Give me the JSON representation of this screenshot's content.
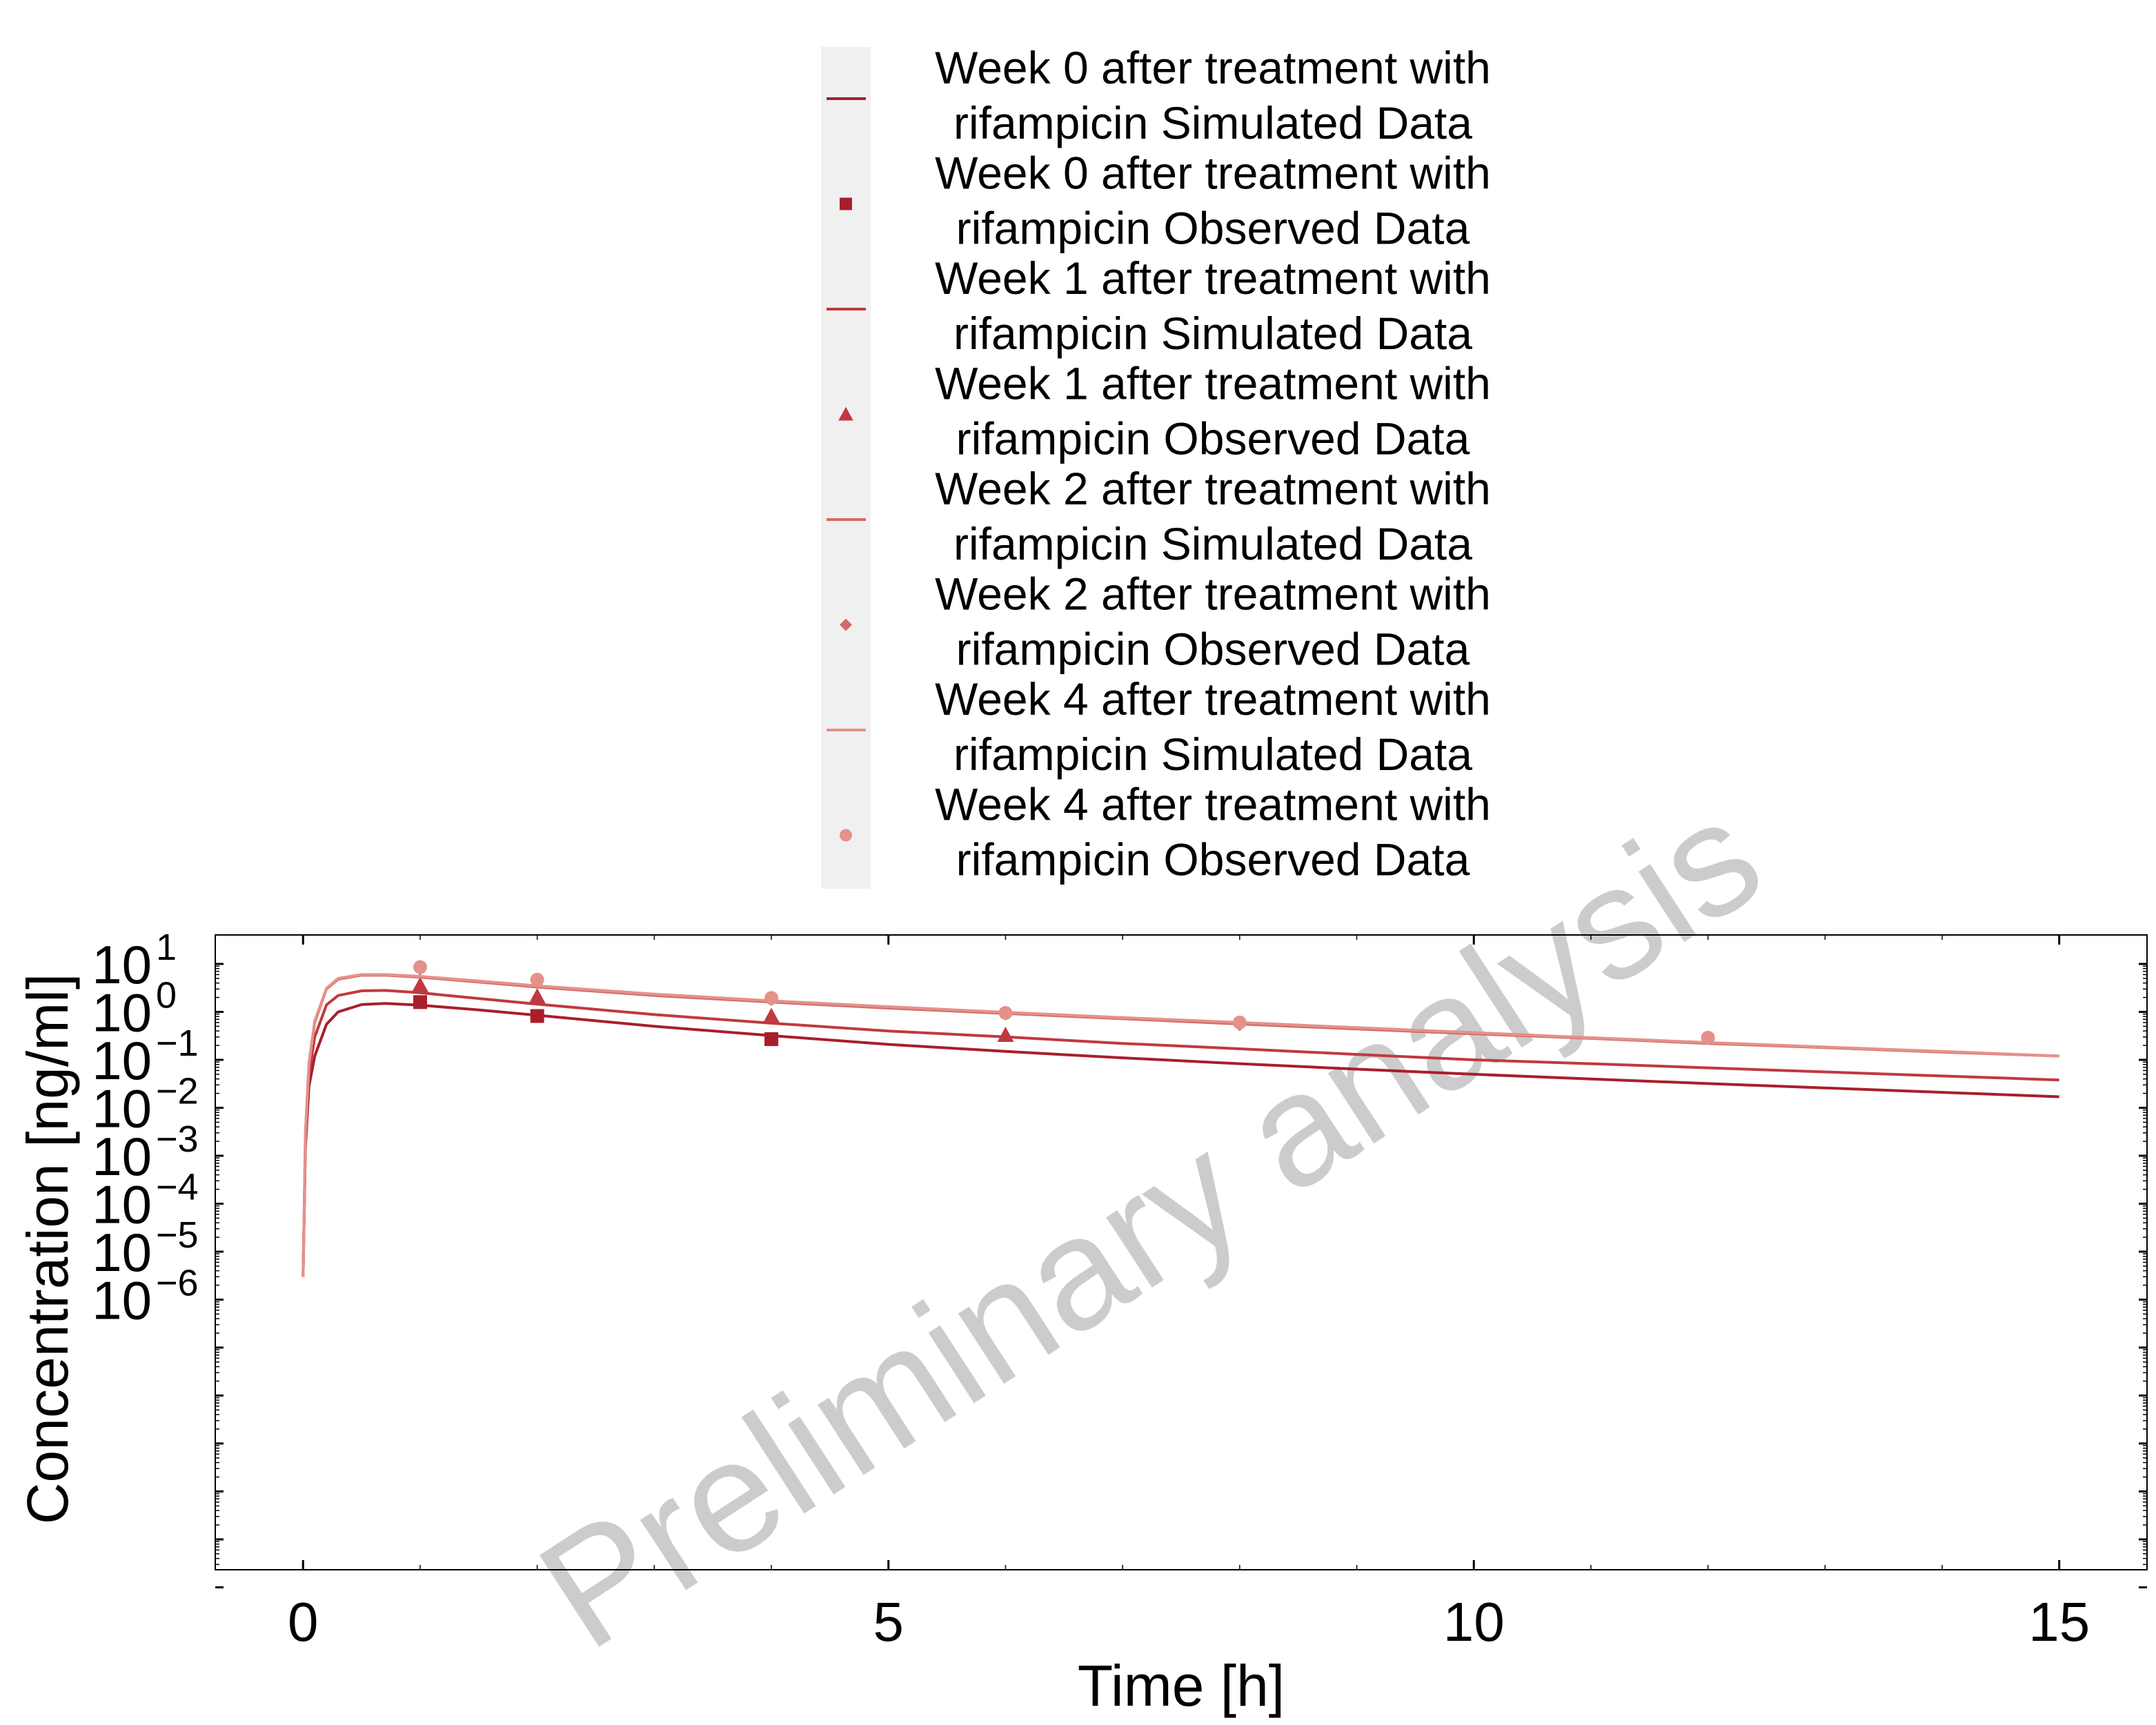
{
  "chart_data": {
    "type": "line",
    "xlabel": "Time [h]",
    "ylabel": "Concentration [ng/ml]",
    "watermark": "Preliminary analysis",
    "xlim": [
      -0.75,
      15.75
    ],
    "x_ticks": [
      0,
      5,
      10,
      15
    ],
    "x_tick_labels": [
      "0",
      "5",
      "10",
      "15"
    ],
    "y_scale": "log",
    "y_tick_labels": [
      {
        "base": "10",
        "exp": "1"
      },
      {
        "base": "10",
        "exp": "0"
      },
      {
        "base": "10",
        "exp": "−1"
      },
      {
        "base": "10",
        "exp": "−2"
      },
      {
        "base": "10",
        "exp": "−3"
      },
      {
        "base": "10",
        "exp": "−4"
      },
      {
        "base": "10",
        "exp": "−5"
      },
      {
        "base": "10",
        "exp": "−6"
      }
    ],
    "grid": false,
    "legend_position": "top-center",
    "legend": [
      {
        "line1": "Week 0 after treatment with",
        "line2": "rifampicin Simulated Data",
        "marker": "line",
        "color": "#A91E2B"
      },
      {
        "line1": "Week 0 after treatment with",
        "line2": "rifampicin Observed Data",
        "marker": "square",
        "color": "#A91E2B"
      },
      {
        "line1": "Week 1 after treatment with",
        "line2": "rifampicin Simulated Data",
        "marker": "line",
        "color": "#C0393F"
      },
      {
        "line1": "Week 1 after treatment with",
        "line2": "rifampicin Observed Data",
        "marker": "triangle",
        "color": "#C0393F"
      },
      {
        "line1": "Week 2 after treatment with",
        "line2": "rifampicin Simulated Data",
        "marker": "line",
        "color": "#D46A66"
      },
      {
        "line1": "Week 2 after treatment with",
        "line2": "rifampicin Observed Data",
        "marker": "diamond",
        "color": "#D46A66"
      },
      {
        "line1": "Week 4 after treatment with",
        "line2": "rifampicin Simulated Data",
        "marker": "line",
        "color": "#E5918A"
      },
      {
        "line1": "Week 4 after treatment with",
        "line2": "rifampicin Observed Data",
        "marker": "circle",
        "color": "#E5918A"
      }
    ],
    "series": [
      {
        "kind": "simulated",
        "marker": "line",
        "color": "#A91E2B",
        "x": [
          0,
          0.02,
          0.05,
          0.1,
          0.2,
          0.3,
          0.5,
          0.7,
          1,
          1.5,
          2,
          3,
          4,
          5,
          6,
          7,
          8,
          9,
          10,
          11,
          12,
          13,
          14,
          15
        ],
        "y": [
          3e-06,
          0.0015,
          0.028,
          0.12,
          0.55,
          1.0,
          1.42,
          1.5,
          1.38,
          1.1,
          0.85,
          0.5,
          0.32,
          0.21,
          0.15,
          0.11,
          0.083,
          0.064,
          0.05,
          0.04,
          0.032,
          0.026,
          0.021,
          0.017
        ]
      },
      {
        "kind": "observed",
        "marker": "square",
        "color": "#A91E2B",
        "x": [
          1,
          2,
          4
        ],
        "y": [
          1.6,
          0.82,
          0.27
        ]
      },
      {
        "kind": "simulated",
        "marker": "line",
        "color": "#C0393F",
        "x": [
          0,
          0.02,
          0.05,
          0.1,
          0.2,
          0.3,
          0.5,
          0.7,
          1,
          1.5,
          2,
          3,
          4,
          5,
          6,
          7,
          8,
          9,
          10,
          11,
          12,
          13,
          14,
          15
        ],
        "y": [
          3e-06,
          0.002,
          0.05,
          0.3,
          1.4,
          2.2,
          2.75,
          2.8,
          2.5,
          1.9,
          1.45,
          0.88,
          0.58,
          0.4,
          0.3,
          0.22,
          0.17,
          0.13,
          0.1,
          0.083,
          0.068,
          0.056,
          0.046,
          0.038
        ]
      },
      {
        "kind": "observed",
        "marker": "triangle",
        "color": "#C0393F",
        "x": [
          1,
          2,
          4,
          6
        ],
        "y": [
          3.6,
          2.1,
          0.82,
          0.33
        ]
      },
      {
        "kind": "simulated",
        "marker": "line",
        "color": "#D46A66",
        "x": [
          0,
          0.02,
          0.05,
          0.1,
          0.2,
          0.3,
          0.5,
          0.7,
          1,
          1.5,
          2,
          3,
          4,
          5,
          6,
          7,
          8,
          9,
          10,
          11,
          12,
          13,
          14,
          15
        ],
        "y": [
          3e-06,
          0.003,
          0.08,
          0.6,
          3.0,
          4.8,
          5.8,
          5.8,
          5.3,
          4.2,
          3.3,
          2.2,
          1.6,
          1.2,
          0.93,
          0.72,
          0.56,
          0.44,
          0.35,
          0.28,
          0.22,
          0.18,
          0.145,
          0.12
        ]
      },
      {
        "kind": "observed",
        "marker": "diamond",
        "color": "#D46A66",
        "x": [
          1,
          2,
          4,
          6,
          8
        ],
        "y": [
          8.0,
          4.3,
          1.85,
          0.92,
          0.55
        ]
      },
      {
        "kind": "simulated",
        "marker": "line",
        "color": "#E5918A",
        "x": [
          0,
          0.02,
          0.05,
          0.1,
          0.2,
          0.3,
          0.5,
          0.7,
          1,
          1.5,
          2,
          3,
          4,
          5,
          6,
          7,
          8,
          9,
          10,
          11,
          12,
          13,
          14,
          15
        ],
        "y": [
          3e-06,
          0.003,
          0.085,
          0.65,
          3.1,
          5.0,
          6.0,
          6.0,
          5.5,
          4.4,
          3.5,
          2.35,
          1.7,
          1.28,
          0.98,
          0.76,
          0.6,
          0.47,
          0.37,
          0.29,
          0.23,
          0.185,
          0.15,
          0.12
        ]
      },
      {
        "kind": "observed",
        "marker": "circle",
        "color": "#E5918A",
        "x": [
          1,
          2,
          4,
          6,
          8,
          12
        ],
        "y": [
          8.6,
          4.7,
          1.95,
          0.95,
          0.6,
          0.29
        ]
      }
    ]
  }
}
